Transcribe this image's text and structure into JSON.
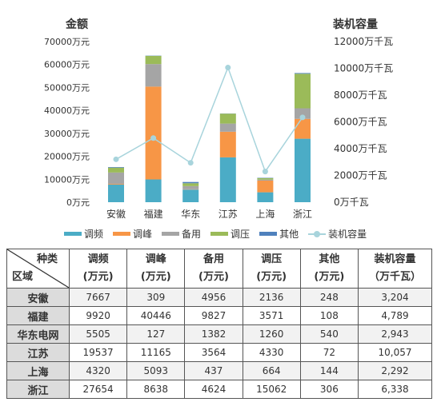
{
  "chart_data": {
    "type": "bar",
    "stacked": true,
    "categories": [
      "安徽",
      "福建",
      "华东",
      "江苏",
      "上海",
      "浙江"
    ],
    "series": [
      {
        "name": "调频",
        "color": "#4bacc6",
        "values": [
          7667,
          9920,
          5505,
          19537,
          4320,
          27654
        ]
      },
      {
        "name": "调峰",
        "color": "#f79646",
        "values": [
          309,
          40446,
          127,
          11165,
          5093,
          8638
        ]
      },
      {
        "name": "备用",
        "color": "#a5a5a5",
        "values": [
          4956,
          9827,
          1382,
          3564,
          437,
          4624
        ]
      },
      {
        "name": "调压",
        "color": "#9bbb59",
        "values": [
          2136,
          3571,
          1260,
          4330,
          664,
          15062
        ]
      },
      {
        "name": "其他",
        "color": "#4f81bd",
        "values": [
          248,
          108,
          540,
          72,
          144,
          306
        ]
      }
    ],
    "line": {
      "name": "装机容量",
      "color": "#a8d4dc",
      "values": [
        3204,
        4789,
        2943,
        10057,
        2292,
        6338
      ]
    },
    "left_axis": {
      "title": "金额",
      "ylim": [
        0,
        70000
      ],
      "ticks": [
        "0万元",
        "10000万元",
        "20000万元",
        "30000万元",
        "40000万元",
        "50000万元",
        "60000万元",
        "70000万元"
      ]
    },
    "right_axis": {
      "title": "装机容量",
      "ylim": [
        0,
        12000
      ],
      "ticks": [
        "0万千瓦",
        "2000万千瓦",
        "4000万千瓦",
        "6000万千瓦",
        "8000万千瓦",
        "10000万千瓦",
        "12000万千瓦"
      ]
    },
    "grid": false,
    "legend_position": "bottom"
  },
  "table": {
    "corner_top": "种类",
    "corner_bottom": "区域",
    "headers": [
      [
        "调频",
        "(万元)"
      ],
      [
        "调峰",
        "(万元)"
      ],
      [
        "备用",
        "(万元)"
      ],
      [
        "调压",
        "(万元)"
      ],
      [
        "其他",
        "(万元)"
      ],
      [
        "装机容量",
        "（万千瓦）"
      ]
    ],
    "rows": [
      {
        "region": "安徽",
        "cells": [
          "7667",
          "309",
          "4956",
          "2136",
          "248",
          "3,204"
        ]
      },
      {
        "region": "福建",
        "cells": [
          "9920",
          "40446",
          "9827",
          "3571",
          "108",
          "4,789"
        ]
      },
      {
        "region": "华东电网",
        "cells": [
          "5505",
          "127",
          "1382",
          "1260",
          "540",
          "2,943"
        ]
      },
      {
        "region": "江苏",
        "cells": [
          "19537",
          "11165",
          "3564",
          "4330",
          "72",
          "10,057"
        ]
      },
      {
        "region": "上海",
        "cells": [
          "4320",
          "5093",
          "437",
          "664",
          "144",
          "2,292"
        ]
      },
      {
        "region": "浙江",
        "cells": [
          "27654",
          "8638",
          "4624",
          "15062",
          "306",
          "6,338"
        ]
      }
    ]
  }
}
